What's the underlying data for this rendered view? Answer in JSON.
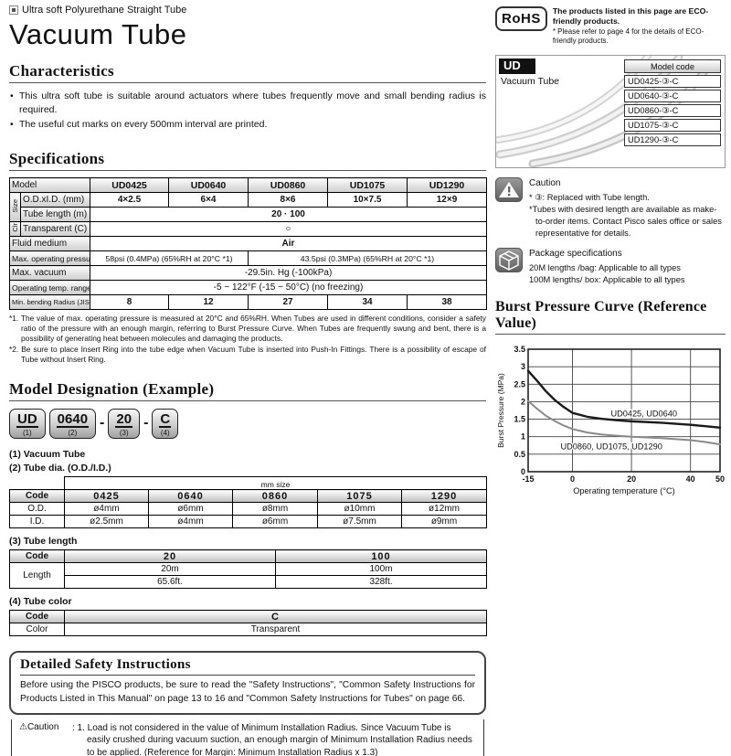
{
  "header": {
    "category": "Ultra soft Polyurethane Straight Tube",
    "title": "Vacuum Tube"
  },
  "characteristics": {
    "heading": "Characteristics",
    "bullets": [
      "This ultra soft tube is suitable around actuators where tubes frequently move and small bending radius is required.",
      "The useful cut marks on every 500mm interval are printed."
    ]
  },
  "specifications": {
    "heading": "Specifications",
    "labels": {
      "model": "Model",
      "size_group": "Size",
      "od_id": "O.D.xI.D. (mm)",
      "tube_length": "Tube length (m)",
      "color_group": "Clr",
      "transparent": "Transparent (C)",
      "fluid": "Fluid medium",
      "pressure": "Max. operating pressure",
      "vacuum": "Max. vacuum",
      "temp": "Operating temp. range",
      "bending": "Min. bending Radius (JIS) (mm)"
    },
    "models": [
      "UD0425",
      "UD0640",
      "UD0860",
      "UD1075",
      "UD1290"
    ],
    "od_id": [
      "4×2.5",
      "6×4",
      "8×6",
      "10×7.5",
      "12×9"
    ],
    "tube_length": "20 · 100",
    "transparent": "○",
    "fluid": "Air",
    "pressure_small": "58psi (0.4MPa) (65%RH at 20°C *1)",
    "pressure_large": "43.5psi (0.3MPa) (65%RH at 20°C *1)",
    "vacuum": "-29.5in. Hg (-100kPa)",
    "temp": "-5 ~ 122°F (-15 ~ 50°C) (no freezing)",
    "bending": [
      "8",
      "12",
      "27",
      "34",
      "38"
    ],
    "footnote1": "*1. The value of max. operating pressure is measured at 20°C and 65%RH. When Tubes are used in different conditions, consider a safety ratio of the pressure with an enough margin, referring to Burst Pressure Curve. When Tubes are frequently swung and bent, there is a possibility of generating heat between molecules and damaging the products.",
    "footnote2": "*2. Be sure to place Insert Ring into the tube edge when Vacuum Tube is inserted into Push-In Fittings. There is a possibility of escape of Tube without Insert Ring."
  },
  "designation": {
    "heading": "Model Designation (Example)",
    "dash": "-",
    "badges": [
      {
        "code": "UD",
        "num": "(1)"
      },
      {
        "code": "0640",
        "num": "(2)"
      },
      {
        "code": "20",
        "num": "(3)"
      },
      {
        "code": "C",
        "num": "(4)"
      }
    ],
    "item1": "(1) Vacuum Tube",
    "item2": "(2) Tube dia. (O.D./I.D.)",
    "item3": "(3) Tube length",
    "item4": "(4) Tube color",
    "dia_table": {
      "unit": "mm size",
      "code_label": "Code",
      "codes": [
        "0425",
        "0640",
        "0860",
        "1075",
        "1290"
      ],
      "od_label": "O.D.",
      "od": [
        "ø4mm",
        "ø6mm",
        "ø8mm",
        "ø10mm",
        "ø12mm"
      ],
      "id_label": "I.D.",
      "id": [
        "ø2.5mm",
        "ø4mm",
        "ø6mm",
        "ø7.5mm",
        "ø9mm"
      ]
    },
    "length_table": {
      "code_label": "Code",
      "codes": [
        "20",
        "100"
      ],
      "length_label": "Length",
      "meters": [
        "20m",
        "100m"
      ],
      "feet": [
        "65.6ft.",
        "328ft."
      ]
    },
    "color_table": {
      "code_label": "Code",
      "code": "C",
      "color_label": "Color",
      "color": "Transparent"
    }
  },
  "safety": {
    "heading": "Detailed Safety Instructions",
    "body": "Before using the PISCO products, be sure to read the \"Safety Instructions\", \"Common Safety Instructions for Products Listed in This Manual\" on page 13 to 16 and \"Common Safety Instructions for Tubes\" on page 66.",
    "caution_label": "⚠Caution",
    "caution_text": ": 1. Load is not considered in the value of Minimum Installation Radius. Since Vacuum Tube is easily crushed during vacuum suction, an enough margin of Minimum Installation Radius needs to be applied. (Reference for Margin: Minimum Installation Radius x 1.3)"
  },
  "eco": {
    "rohs": "RoHS",
    "line1": "The products listed in this page are ECO-friendly products.",
    "line2": "* Please refer to page 4 for the details of ECO-friendly products."
  },
  "product_box": {
    "series": "UD",
    "name": "Vacuum Tube",
    "model_code_header": "Model code",
    "codes": [
      "UD0425-③-C",
      "UD0640-③-C",
      "UD0860-③-C",
      "UD1075-③-C",
      "UD1290-③-C"
    ]
  },
  "caution_note": {
    "heading": "Caution",
    "line1": "* ③: Replaced with Tube length.",
    "line2": "*Tubes with desired length are available as make-to-order items. Contact Pisco sales office or sales representative for details."
  },
  "package_spec": {
    "heading": "Package specifications",
    "line1": "20M lengths /bag: Applicable to all types",
    "line2": "100M lengths/ box: Applicable to all types"
  },
  "chart_heading": "Burst Pressure Curve (Reference Value)",
  "chart_data": {
    "type": "line",
    "title": "Burst Pressure Curve (Reference Value)",
    "xlabel": "Operating temperature (°C)",
    "ylabel": "Burst Pressure (MPa)",
    "xlim": [
      -15,
      50
    ],
    "ylim": [
      0,
      3.5
    ],
    "x_ticks": [
      -15,
      0,
      20,
      40,
      50
    ],
    "y_ticks": [
      0,
      0.5,
      1,
      1.5,
      2,
      2.5,
      3,
      3.5
    ],
    "grid": true,
    "series": [
      {
        "name": "UD0425, UD0640",
        "color": "#1a1a1a",
        "width": 2.4,
        "x": [
          -15,
          -12,
          -9,
          -6,
          -3,
          0,
          5,
          10,
          15,
          20,
          25,
          30,
          35,
          40,
          45,
          50
        ],
        "y": [
          2.88,
          2.6,
          2.3,
          2.05,
          1.85,
          1.68,
          1.57,
          1.51,
          1.47,
          1.44,
          1.42,
          1.4,
          1.37,
          1.34,
          1.3,
          1.26
        ]
      },
      {
        "name": "UD0860, UD1075, UD1290",
        "color": "#8a8a8a",
        "width": 2,
        "x": [
          -15,
          -12,
          -9,
          -6,
          -3,
          0,
          5,
          10,
          15,
          20,
          25,
          30,
          35,
          40,
          45,
          50
        ],
        "y": [
          2.02,
          1.8,
          1.6,
          1.45,
          1.32,
          1.22,
          1.12,
          1.06,
          1.03,
          1.0,
          0.98,
          0.96,
          0.93,
          0.9,
          0.85,
          0.78
        ]
      }
    ],
    "labels": [
      {
        "text": "UD0425, UD0640",
        "x": 13,
        "y": 1.58
      },
      {
        "text": "UD0860, UD1075, UD1290",
        "x": -4,
        "y": 0.64
      }
    ],
    "legend_position": "inline-labels"
  }
}
